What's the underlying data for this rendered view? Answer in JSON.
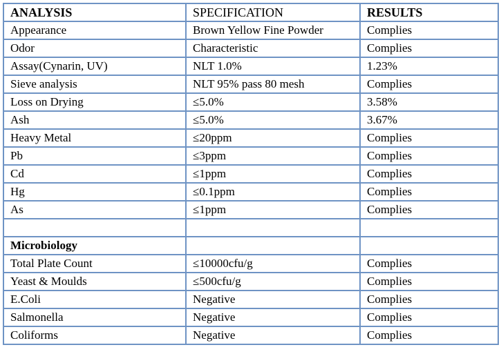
{
  "table": {
    "columns": [
      {
        "label": "ANALYSIS"
      },
      {
        "label": "SPECIFICATION"
      },
      {
        "label": "RESULTS"
      }
    ],
    "rows": [
      {
        "analysis": "Appearance",
        "specification": "Brown Yellow Fine Powder",
        "results": "Complies"
      },
      {
        "analysis": "Odor",
        "specification": "Characteristic",
        "results": "Complies"
      },
      {
        "analysis": "Assay(Cynarin, UV)",
        "specification": "NLT 1.0%",
        "results": "1.23%"
      },
      {
        "analysis": "Sieve analysis",
        "specification": "NLT 95% pass 80 mesh",
        "results": "Complies"
      },
      {
        "analysis": "Loss on Drying",
        "specification": "≤5.0%",
        "results": "3.58%"
      },
      {
        "analysis": "Ash",
        "specification": "≤5.0%",
        "results": "3.67%"
      },
      {
        "analysis": "Heavy Metal",
        "specification": "≤20ppm",
        "results": "Complies"
      },
      {
        "analysis": "Pb",
        "specification": "≤3ppm",
        "results": "Complies"
      },
      {
        "analysis": "Cd",
        "specification": "≤1ppm",
        "results": "Complies"
      },
      {
        "analysis": "Hg",
        "specification": "≤0.1ppm",
        "results": "Complies"
      },
      {
        "analysis": "As",
        "specification": "≤1ppm",
        "results": "Complies"
      },
      {
        "analysis": "",
        "specification": "",
        "results": "",
        "empty": true
      },
      {
        "analysis": "Microbiology",
        "specification": "",
        "results": "",
        "section": true
      },
      {
        "analysis": "Total Plate Count",
        "specification": "≤10000cfu/g",
        "results": "Complies"
      },
      {
        "analysis": "Yeast & Moulds",
        "specification": "≤500cfu/g",
        "results": "Complies"
      },
      {
        "analysis": "E.Coli",
        "specification": "Negative",
        "results": "Complies"
      },
      {
        "analysis": "Salmonella",
        "specification": "Negative",
        "results": "Complies"
      },
      {
        "analysis": "Coliforms",
        "specification": "Negative",
        "results": "Complies"
      }
    ]
  },
  "colors": {
    "border": "#6e93c4",
    "text": "#000000",
    "background": "#ffffff"
  }
}
